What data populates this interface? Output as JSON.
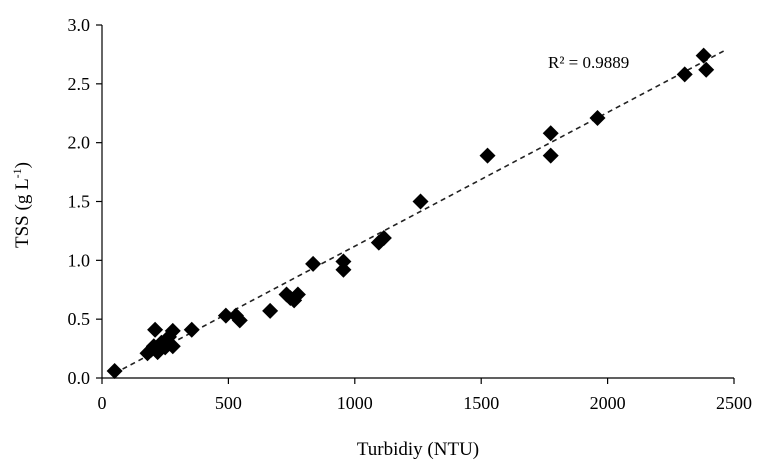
{
  "chart_data": {
    "type": "scatter",
    "title": "",
    "xlabel": "Turbidiy (NTU)",
    "ylabel_main": "TSS (g L",
    "ylabel_sup": "-1",
    "ylabel_tail": ")",
    "xlim": [
      0,
      2500
    ],
    "ylim": [
      0,
      3.0
    ],
    "xticks": [
      0,
      500,
      1000,
      1500,
      2000,
      2500
    ],
    "xtick_labels": [
      "0",
      "500",
      "1000",
      "1500",
      "2000",
      "2500"
    ],
    "yticks": [
      0,
      0.5,
      1.0,
      1.5,
      2.0,
      2.5,
      3.0
    ],
    "ytick_labels": [
      "0.0",
      "0.5",
      "1.0",
      "1.5",
      "2.0",
      "2.5",
      "3.0"
    ],
    "grid": false,
    "marker": "diamond",
    "marker_color": "#000000",
    "annotation": "R² = 0.9889",
    "trendline": {
      "type": "linear",
      "style": "dashed",
      "x": [
        50,
        2460
      ],
      "y": [
        0.04,
        2.78
      ]
    },
    "points": [
      {
        "x": 50,
        "y": 0.06
      },
      {
        "x": 180,
        "y": 0.21
      },
      {
        "x": 195,
        "y": 0.24
      },
      {
        "x": 205,
        "y": 0.27
      },
      {
        "x": 210,
        "y": 0.41
      },
      {
        "x": 220,
        "y": 0.22
      },
      {
        "x": 235,
        "y": 0.3
      },
      {
        "x": 250,
        "y": 0.26
      },
      {
        "x": 265,
        "y": 0.35
      },
      {
        "x": 280,
        "y": 0.4
      },
      {
        "x": 280,
        "y": 0.27
      },
      {
        "x": 355,
        "y": 0.41
      },
      {
        "x": 490,
        "y": 0.53
      },
      {
        "x": 530,
        "y": 0.53
      },
      {
        "x": 545,
        "y": 0.49
      },
      {
        "x": 665,
        "y": 0.57
      },
      {
        "x": 730,
        "y": 0.71
      },
      {
        "x": 745,
        "y": 0.68
      },
      {
        "x": 760,
        "y": 0.66
      },
      {
        "x": 775,
        "y": 0.71
      },
      {
        "x": 835,
        "y": 0.97
      },
      {
        "x": 955,
        "y": 0.99
      },
      {
        "x": 955,
        "y": 0.92
      },
      {
        "x": 1095,
        "y": 1.15
      },
      {
        "x": 1115,
        "y": 1.19
      },
      {
        "x": 1260,
        "y": 1.5
      },
      {
        "x": 1525,
        "y": 1.89
      },
      {
        "x": 1775,
        "y": 2.08
      },
      {
        "x": 1775,
        "y": 1.89
      },
      {
        "x": 1960,
        "y": 2.21
      },
      {
        "x": 2305,
        "y": 2.58
      },
      {
        "x": 2380,
        "y": 2.74
      },
      {
        "x": 2390,
        "y": 2.62
      }
    ]
  }
}
